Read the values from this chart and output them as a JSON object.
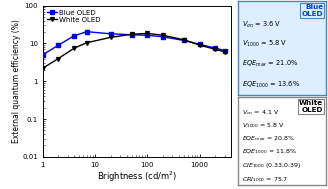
{
  "blue_x": [
    1.0,
    2.0,
    4.0,
    7.0,
    20.0,
    50.0,
    100.0,
    200.0,
    500.0,
    1000.0,
    2000.0,
    3000.0
  ],
  "blue_y": [
    5.0,
    9.0,
    16.0,
    20.5,
    18.0,
    17.0,
    16.5,
    15.0,
    12.0,
    9.5,
    7.5,
    6.5
  ],
  "white_x": [
    1.0,
    2.0,
    4.0,
    7.0,
    20.0,
    50.0,
    100.0,
    200.0,
    500.0,
    1000.0,
    2000.0,
    3000.0
  ],
  "white_y": [
    2.2,
    4.0,
    7.5,
    10.5,
    14.5,
    17.5,
    18.5,
    16.5,
    12.5,
    9.0,
    7.0,
    6.0
  ],
  "blue_color": "#0000ee",
  "white_color": "#000000",
  "xlabel": "Brightness (cd/m$^2$)",
  "ylabel": "External quantum efficiency (%)",
  "xlim": [
    1,
    4000
  ],
  "ylim": [
    0.01,
    100
  ],
  "blue_box_bg": "#ddeeff",
  "blue_box_edge": "#4488cc",
  "blue_title_color": "#0044cc",
  "white_box_bg": "#ffffff",
  "white_box_edge": "#888888",
  "bg_color": "#ffffff"
}
